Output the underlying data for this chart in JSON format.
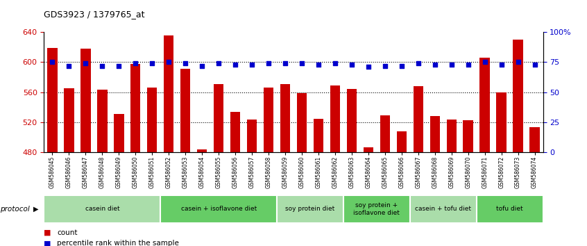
{
  "title": "GDS3923 / 1379765_at",
  "samples": [
    "GSM586045",
    "GSM586046",
    "GSM586047",
    "GSM586048",
    "GSM586049",
    "GSM586050",
    "GSM586051",
    "GSM586052",
    "GSM586053",
    "GSM586054",
    "GSM586055",
    "GSM586056",
    "GSM586057",
    "GSM586058",
    "GSM586059",
    "GSM586060",
    "GSM586061",
    "GSM586062",
    "GSM586063",
    "GSM586064",
    "GSM586065",
    "GSM586066",
    "GSM586067",
    "GSM586068",
    "GSM586069",
    "GSM586070",
    "GSM586071",
    "GSM586072",
    "GSM586073",
    "GSM586074"
  ],
  "counts": [
    619,
    565,
    618,
    563,
    531,
    598,
    566,
    635,
    591,
    484,
    571,
    534,
    524,
    566,
    571,
    559,
    525,
    569,
    564,
    487,
    529,
    508,
    568,
    528,
    524,
    523,
    606,
    560,
    630,
    514
  ],
  "percentile_ranks": [
    75,
    72,
    74,
    72,
    72,
    74,
    74,
    75,
    74,
    72,
    74,
    73,
    73,
    74,
    74,
    74,
    73,
    74,
    73,
    71,
    72,
    72,
    74,
    73,
    73,
    73,
    75,
    73,
    75,
    73
  ],
  "groups": [
    {
      "label": "casein diet",
      "start": 0,
      "end": 7,
      "color": "#aaddaa"
    },
    {
      "label": "casein + isoflavone diet",
      "start": 7,
      "end": 14,
      "color": "#66cc66"
    },
    {
      "label": "soy protein diet",
      "start": 14,
      "end": 18,
      "color": "#aaddaa"
    },
    {
      "label": "soy protein +\nisoflavone diet",
      "start": 18,
      "end": 22,
      "color": "#66cc66"
    },
    {
      "label": "casein + tofu diet",
      "start": 22,
      "end": 26,
      "color": "#aaddaa"
    },
    {
      "label": "tofu diet",
      "start": 26,
      "end": 30,
      "color": "#66cc66"
    }
  ],
  "bar_color": "#cc0000",
  "dot_color": "#0000cc",
  "ymin": 480,
  "ymax": 640,
  "ylim_right": [
    0,
    100
  ],
  "yticks_left": [
    480,
    520,
    560,
    600,
    640
  ],
  "yticks_right": [
    0,
    25,
    50,
    75,
    100
  ],
  "ytick_labels_right": [
    "0",
    "25",
    "50",
    "75",
    "100%"
  ],
  "hlines": [
    520,
    560,
    600
  ],
  "protocol_label": "protocol",
  "legend_count_label": "count",
  "legend_percentile_label": "percentile rank within the sample"
}
